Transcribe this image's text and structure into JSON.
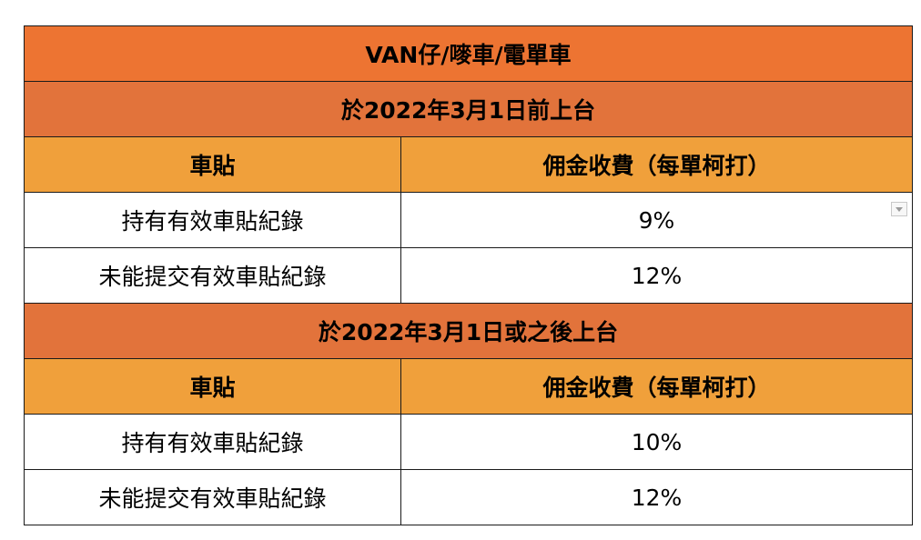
{
  "title": "VAN仔/嘜車/電單車",
  "colors": {
    "title_bg": "#ED7432",
    "section_bg": "#E2733B",
    "header_bg": "#F0A03B",
    "row_bg": "#FFFFFF"
  },
  "sections": [
    {
      "heading": "於2022年3月1日前上台",
      "col_headers": [
        "車貼",
        "佣金收費（每單柯打）"
      ],
      "rows": [
        {
          "label": "持有有效車貼紀錄",
          "rate": "9%"
        },
        {
          "label": "未能提交有效車貼紀錄",
          "rate": "12%"
        }
      ]
    },
    {
      "heading": "於2022年3月1日或之後上台",
      "col_headers": [
        "車貼",
        "佣金收費（每單柯打）"
      ],
      "rows": [
        {
          "label": "持有有效車貼紀錄",
          "rate": "10%"
        },
        {
          "label": "未能提交有效車貼紀錄",
          "rate": "12%"
        }
      ]
    }
  ]
}
